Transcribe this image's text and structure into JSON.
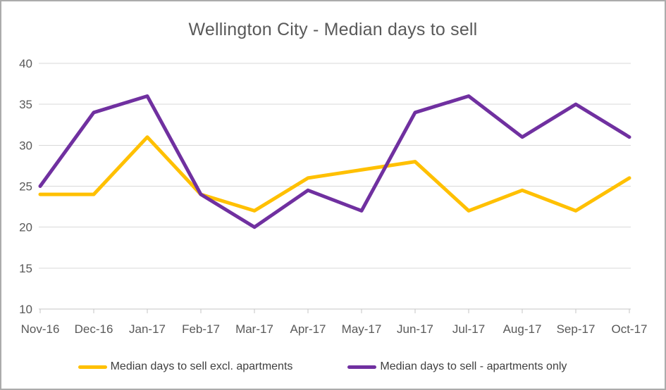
{
  "chart_data": {
    "type": "line",
    "title": "Wellington City - Median days to sell",
    "categories": [
      "Nov-16",
      "Dec-16",
      "Jan-17",
      "Feb-17",
      "Mar-17",
      "Apr-17",
      "May-17",
      "Jun-17",
      "Jul-17",
      "Aug-17",
      "Sep-17",
      "Oct-17"
    ],
    "series": [
      {
        "key": "excl-apartments",
        "name": "Median days to sell excl. apartments",
        "color": "#FFC000",
        "values": [
          24,
          24,
          31,
          24,
          22,
          26,
          27,
          28,
          22,
          24.5,
          22,
          26
        ]
      },
      {
        "key": "apartments-only",
        "name": "Median days to sell - apartments only",
        "color": "#7030A0",
        "values": [
          25,
          34,
          36,
          24,
          20,
          24.5,
          22,
          34,
          36,
          31,
          35,
          31
        ]
      }
    ],
    "xlabel": "",
    "ylabel": "",
    "ylim": [
      10,
      40
    ],
    "yticks": [
      10,
      15,
      20,
      25,
      30,
      35,
      40
    ],
    "grid": true,
    "legend_position": "bottom",
    "colors": {
      "grid_line": "#D9D9D9",
      "axis_line": "#C6C6C6",
      "tick_label": "#595959",
      "title": "#595959",
      "legend_text": "#404040",
      "background": "#FFFFFF",
      "border": "#ABABAB"
    }
  }
}
